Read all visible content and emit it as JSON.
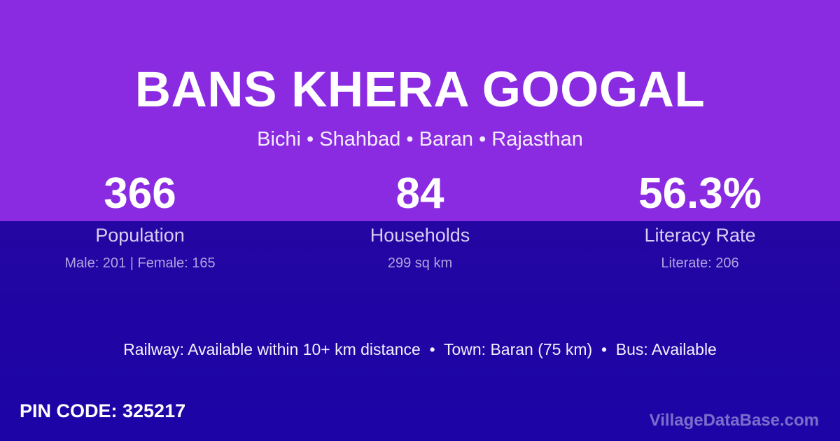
{
  "theme": {
    "purple_bg": "#8A2BE2",
    "blue_bg": "#1E05A4",
    "title_color": "#FFFFFF",
    "label_color": "#D9CDF3",
    "detail_color": "#B2A3E0",
    "watermark_color": "rgba(255,255,255,0.42)"
  },
  "header": {
    "title": "BANS KHERA GOOGAL",
    "breadcrumb": "Bichi • Shahbad • Baran • Rajasthan"
  },
  "stats": [
    {
      "value": "366",
      "label": "Population",
      "detail": "Male: 201 | Female: 165"
    },
    {
      "value": "84",
      "label": "Households",
      "detail": "299 sq km"
    },
    {
      "value": "56.3%",
      "label": "Literacy Rate",
      "detail": "Literate: 206"
    }
  ],
  "transport": {
    "line": "Railway: Available within 10+ km distance  •  Town: Baran (75 km)  •  Bus: Available"
  },
  "footer": {
    "pin_code": "PIN CODE: 325217",
    "watermark": "VillageDataBase.com"
  }
}
